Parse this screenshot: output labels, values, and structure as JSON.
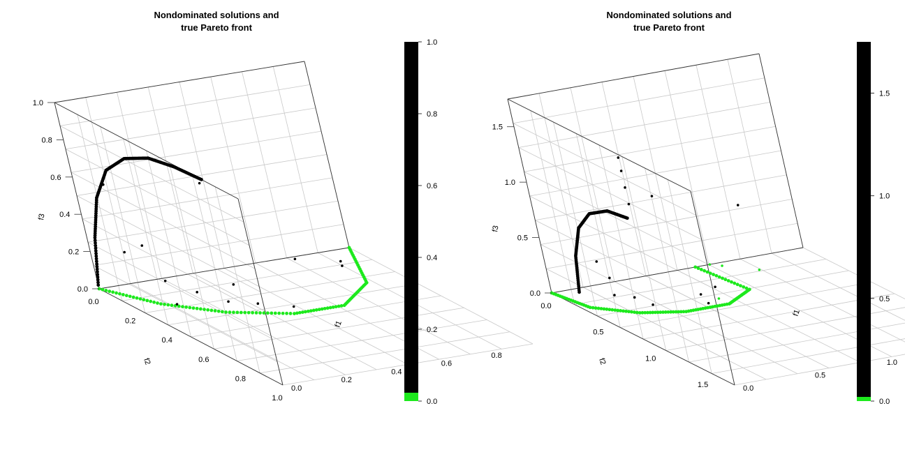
{
  "chart_data": [
    {
      "type": "scatter",
      "projection": "3d",
      "title_line1": "Nondominated solutions and",
      "title_line2": "true Pareto front",
      "axis_labels": {
        "f1": "f1",
        "f2": "f2",
        "f3": "f3"
      },
      "ranges": {
        "f1": [
          0,
          1
        ],
        "f2": [
          0,
          1
        ],
        "f3": [
          0,
          1
        ]
      },
      "ticks": {
        "f1": [
          "0.0",
          "0.2",
          "0.4",
          "0.6",
          "0.8"
        ],
        "f2": [
          "0.0",
          "0.2",
          "0.4",
          "0.6",
          "0.8",
          "1.0"
        ],
        "f3": [
          "0.0",
          "0.2",
          "0.4",
          "0.6",
          "0.8",
          "1.0"
        ]
      },
      "colorbar": {
        "ticks": [
          "0.0",
          "0.2",
          "0.4",
          "0.6",
          "0.8",
          "1.0"
        ],
        "colors": [
          "#1de91d",
          "#000000"
        ]
      },
      "grid": true,
      "series": [
        {
          "color": "#000000",
          "note": "upper arc (f1=0 plane)",
          "points": [
            [
              0,
              0,
              0.02
            ],
            [
              0,
              0.05,
              0.3
            ],
            [
              0,
              0.12,
              0.55
            ],
            [
              0,
              0.22,
              0.75
            ],
            [
              0,
              0.35,
              0.88
            ],
            [
              0,
              0.5,
              0.96
            ],
            [
              0,
              0.65,
              0.99
            ],
            [
              0,
              0.8,
              1.0
            ]
          ]
        },
        {
          "color": "#1de91d",
          "note": "bottom arc (f3=0 plane)",
          "points": [
            [
              0,
              0,
              0
            ],
            [
              0.1,
              0.2,
              0
            ],
            [
              0.25,
              0.35,
              0
            ],
            [
              0.45,
              0.45,
              0
            ],
            [
              0.65,
              0.45,
              0
            ],
            [
              0.85,
              0.3,
              0
            ],
            [
              1.0,
              0,
              0
            ]
          ]
        },
        {
          "color": "#000000",
          "note": "scattered nondominated solutions",
          "points": [
            [
              0.02,
              0.75,
              0.95
            ],
            [
              0.05,
              0.1,
              0.6
            ],
            [
              0.1,
              0.05,
              0.2
            ],
            [
              0.2,
              0.1,
              0.05
            ],
            [
              0.25,
              0.2,
              0.03
            ],
            [
              0.3,
              0.3,
              0.02
            ],
            [
              0.35,
              0.4,
              0.05
            ],
            [
              0.15,
              0.6,
              0.3
            ],
            [
              0.3,
              0.7,
              0.2
            ],
            [
              0.8,
              0.25,
              0.1
            ],
            [
              0.75,
              0.05,
              0.02
            ],
            [
              0.05,
              0.25,
              0.35
            ],
            [
              0.1,
              0.3,
              0.05
            ],
            [
              0.4,
              0.9,
              0.5
            ]
          ]
        }
      ]
    },
    {
      "type": "scatter",
      "projection": "3d",
      "title_line1": "Nondominated solutions and",
      "title_line2": "true Pareto front",
      "axis_labels": {
        "f1": "f1",
        "f2": "f2",
        "f3": "f3"
      },
      "ranges": {
        "f1": [
          0,
          1.75
        ],
        "f2": [
          0,
          1.75
        ],
        "f3": [
          0,
          1.75
        ]
      },
      "ticks": {
        "f1": [
          "0.0",
          "0.5",
          "1.0"
        ],
        "f2": [
          "0.0",
          "0.5",
          "1.0",
          "1.5"
        ],
        "f3": [
          "0.0",
          "0.5",
          "1.0",
          "1.5"
        ]
      },
      "colorbar": {
        "ticks": [
          "0.0",
          "0.5",
          "1.0",
          "1.5"
        ],
        "colors": [
          "#1de91d",
          "#000000"
        ]
      },
      "grid": true,
      "series": [
        {
          "color": "#000000",
          "note": "upper arc",
          "points": [
            [
              0,
              0.3,
              0.15
            ],
            [
              0,
              0.35,
              0.5
            ],
            [
              0,
              0.45,
              0.8
            ],
            [
              0,
              0.6,
              1.0
            ],
            [
              0,
              0.8,
              1.12
            ],
            [
              0,
              1.0,
              1.15
            ]
          ]
        },
        {
          "color": "#1de91d",
          "note": "bottom arc",
          "points": [
            [
              0,
              0,
              0
            ],
            [
              0.05,
              0.3,
              0
            ],
            [
              0.25,
              0.5,
              0
            ],
            [
              0.5,
              0.6,
              0
            ],
            [
              0.8,
              0.6,
              0
            ],
            [
              1.05,
              0.45,
              0
            ],
            [
              1.0,
              0,
              0
            ]
          ]
        },
        {
          "color": "#1de91d",
          "note": "green outliers",
          "points": [
            [
              1.1,
              0.0,
              0
            ],
            [
              1.15,
              0.05,
              0
            ],
            [
              1.3,
              0.2,
              0
            ],
            [
              0.8,
              0.5,
              0
            ]
          ]
        },
        {
          "color": "#000000",
          "note": "vertical column and scattered solutions",
          "points": [
            [
              0,
              1.05,
              1.3
            ],
            [
              0,
              1.05,
              1.45
            ],
            [
              0,
              1.05,
              1.6
            ],
            [
              0,
              1.05,
              1.72
            ],
            [
              0.1,
              0.4,
              0.45
            ],
            [
              0.2,
              0.35,
              0.1
            ],
            [
              0.3,
              0.4,
              0.08
            ],
            [
              0.35,
              0.5,
              0.05
            ],
            [
              0.6,
              0.7,
              0.1
            ],
            [
              0.7,
              0.65,
              0.2
            ],
            [
              0.5,
              0.8,
              0.25
            ],
            [
              0.6,
              0.35,
              0.9
            ],
            [
              0.1,
              0.5,
              0.35
            ],
            [
              0.45,
              1.5,
              1.4
            ]
          ]
        }
      ]
    }
  ]
}
